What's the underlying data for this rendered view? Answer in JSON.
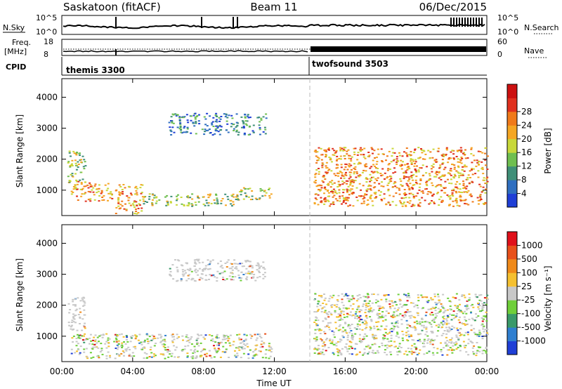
{
  "header": {
    "station": "Saskatoon (fitACF)",
    "beam": "Beam 11",
    "date": "06/Dec/2015"
  },
  "top_panels": {
    "nsky_label": "N.Sky",
    "nsky_ticks": [
      "10^5",
      "10^0"
    ],
    "nsearch_label": "N.Search",
    "nsearch_ticks": [
      "10^5",
      "10^0"
    ],
    "freq_label": "Freq.",
    "freq_unit": "[MHz]",
    "freq_ticks": [
      "18",
      "8"
    ],
    "nave_label": "Nave",
    "nave_ticks": [
      "60",
      "0"
    ],
    "cpid_label": "CPID",
    "programs": [
      {
        "name": "themis 3300",
        "start_h": 0
      },
      {
        "name": "twofsound 3503",
        "start_h": 14
      }
    ]
  },
  "chart_data": [
    {
      "type": "heatmap",
      "name": "power",
      "ylabel": "Slant Range [km]",
      "xlabel": "",
      "xlim": [
        0,
        24
      ],
      "ylim": [
        180,
        4600
      ],
      "yticks": [
        "1000",
        "2000",
        "3000",
        "4000"
      ],
      "colorbar": {
        "label": "Power [dB]",
        "ticks": [
          "4",
          "8",
          "12",
          "16",
          "20",
          "24",
          "28"
        ],
        "colors": [
          "#1f3fd6",
          "#2f6fc0",
          "#3f8f78",
          "#6fbf50",
          "#c8d83a",
          "#f5a623",
          "#f07a1a",
          "#e0301e",
          "#cc1010"
        ]
      },
      "echo_regions": [
        {
          "t_start": 0.3,
          "t_end": 1.3,
          "r_min": 1200,
          "r_max": 2300,
          "level": "medium"
        },
        {
          "t_start": 0.5,
          "t_end": 2.8,
          "r_min": 650,
          "r_max": 1300,
          "level": "high"
        },
        {
          "t_start": 3.0,
          "t_end": 4.5,
          "r_min": 250,
          "r_max": 1200,
          "level": "high"
        },
        {
          "t_start": 4.5,
          "t_end": 10.0,
          "r_min": 500,
          "r_max": 900,
          "level": "medium"
        },
        {
          "t_start": 6.0,
          "t_end": 11.5,
          "r_min": 2800,
          "r_max": 3500,
          "level": "low"
        },
        {
          "t_start": 10.0,
          "t_end": 11.8,
          "r_min": 700,
          "r_max": 1100,
          "level": "medium"
        },
        {
          "t_start": 14.2,
          "t_end": 24.0,
          "r_min": 500,
          "r_max": 2400,
          "level": "high"
        }
      ]
    },
    {
      "type": "heatmap",
      "name": "velocity",
      "ylabel": "Slant Range [km]",
      "xlabel": "Time UT",
      "xlim": [
        0,
        24
      ],
      "ylim": [
        180,
        4600
      ],
      "xticks": [
        "00:00",
        "04:00",
        "08:00",
        "12:00",
        "16:00",
        "20:00",
        "00:00"
      ],
      "yticks": [
        "1000",
        "2000",
        "3000",
        "4000"
      ],
      "colorbar": {
        "label": "Velocity [m s⁻¹]",
        "ticks": [
          "1000",
          "500",
          "100",
          "25",
          "-25",
          "-100",
          "-500",
          "-1000"
        ],
        "colors": [
          "#1f3fd6",
          "#2f7fd0",
          "#3a9a6a",
          "#6fcf3a",
          "#c8c8c8",
          "#f5c030",
          "#f08a1a",
          "#e8501a",
          "#e0101a"
        ]
      },
      "echo_regions": [
        {
          "t_start": 0.3,
          "t_end": 1.3,
          "r_min": 1200,
          "r_max": 2300,
          "level": "ground"
        },
        {
          "t_start": 0.5,
          "t_end": 11.8,
          "r_min": 300,
          "r_max": 1100,
          "level": "mixed"
        },
        {
          "t_start": 6.0,
          "t_end": 11.5,
          "r_min": 2800,
          "r_max": 3500,
          "level": "ground"
        },
        {
          "t_start": 14.2,
          "t_end": 24.0,
          "r_min": 400,
          "r_max": 2400,
          "level": "mixed"
        }
      ]
    }
  ]
}
